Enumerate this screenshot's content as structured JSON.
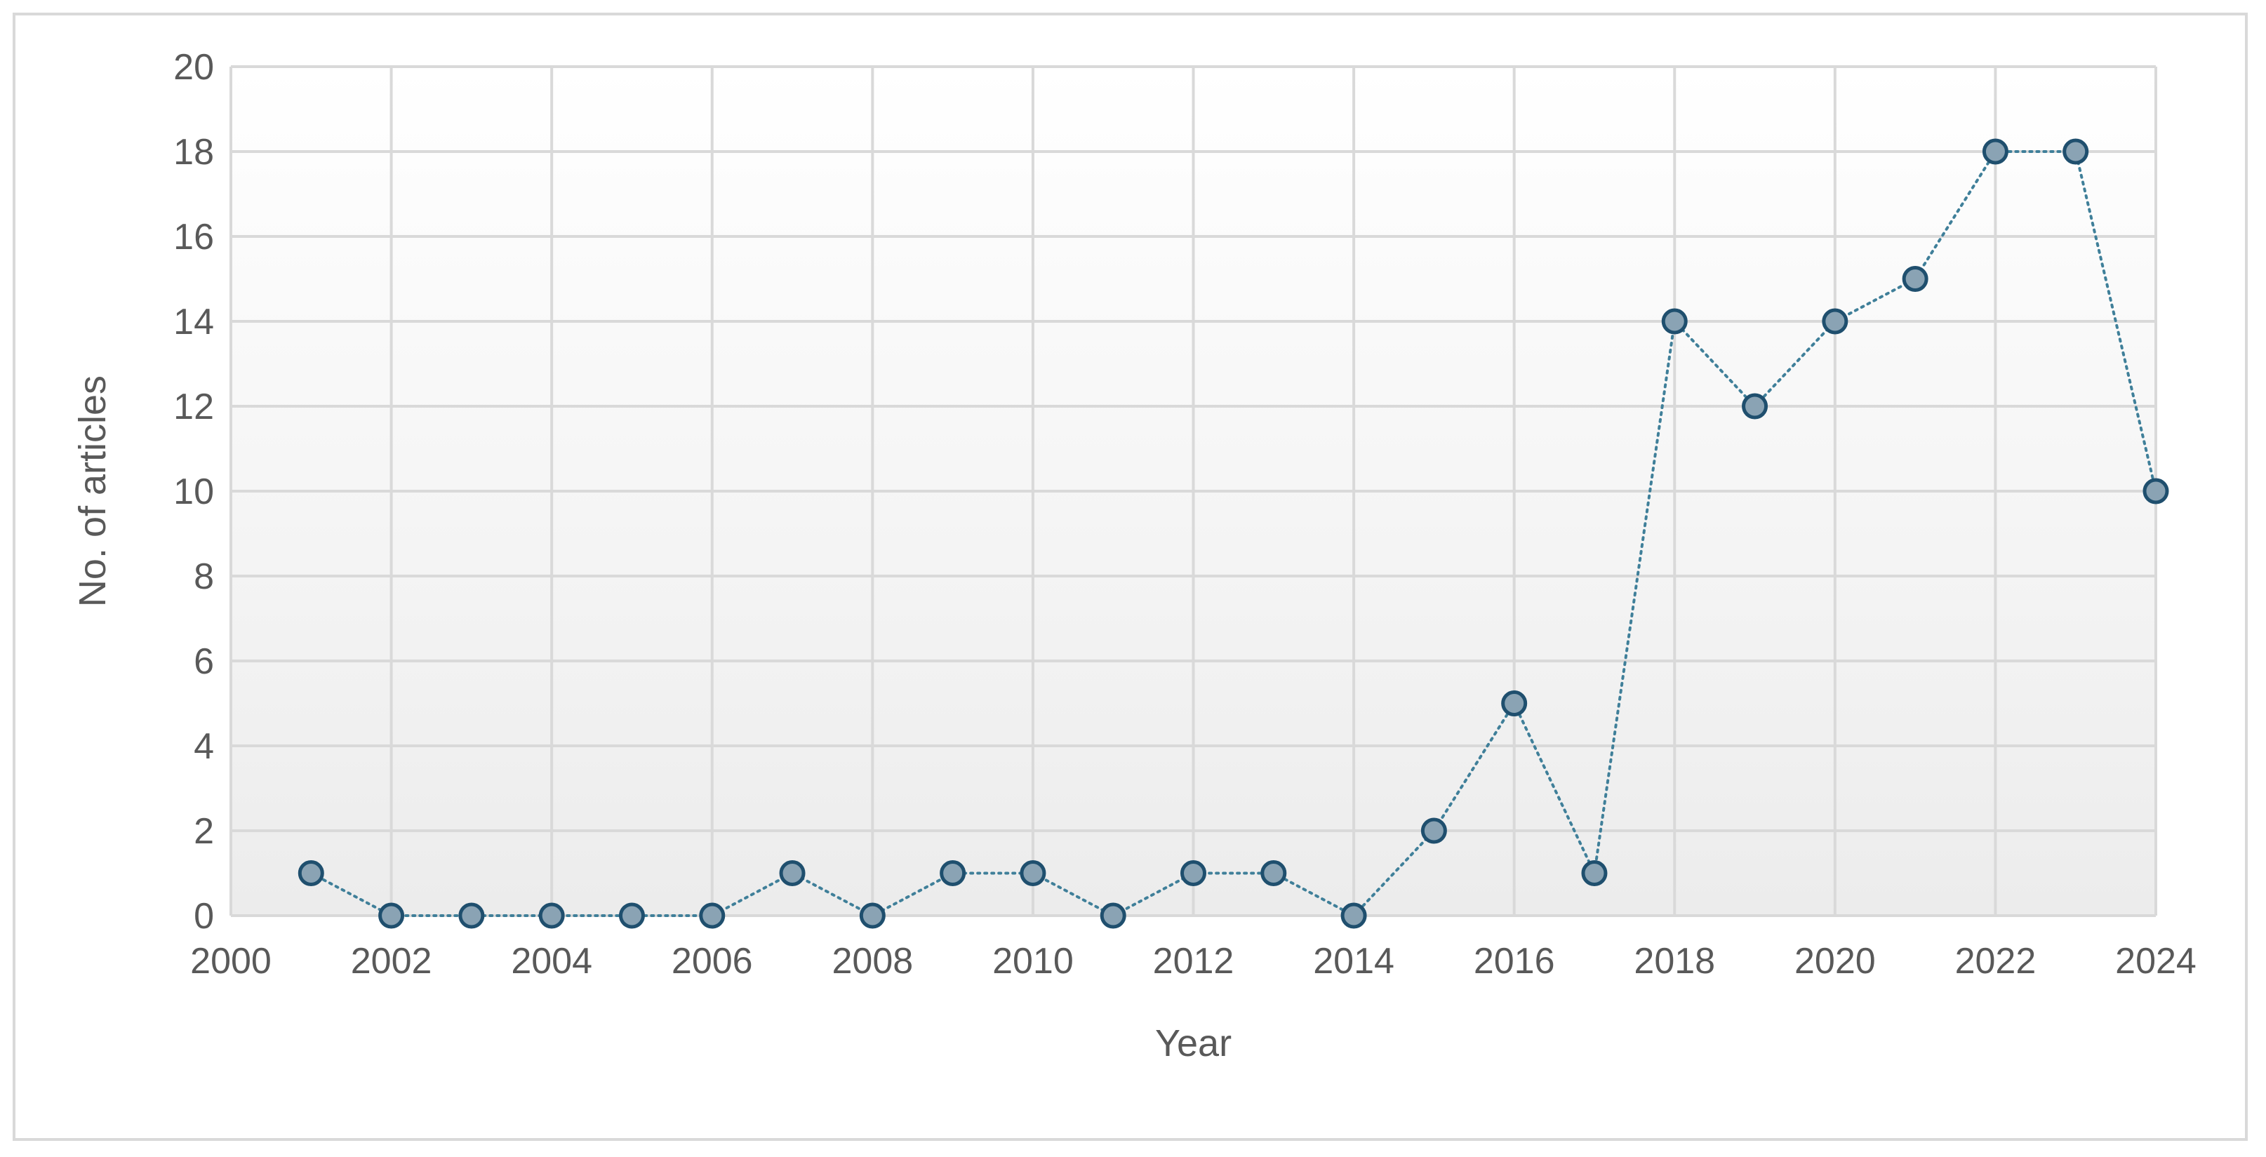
{
  "chart_data": {
    "type": "line",
    "title": "",
    "xlabel": "Year",
    "ylabel": "No. of articles",
    "xlim": [
      2000,
      2024
    ],
    "ylim": [
      0,
      20
    ],
    "x_ticks": [
      "2000",
      "2002",
      "2004",
      "2006",
      "2008",
      "2010",
      "2012",
      "2014",
      "2016",
      "2018",
      "2020",
      "2022",
      "2024"
    ],
    "y_ticks": [
      "0",
      "2",
      "4",
      "6",
      "8",
      "10",
      "12",
      "14",
      "16",
      "18",
      "20"
    ],
    "grid": true,
    "legend": "none",
    "line_style": "dotted",
    "colors": {
      "line": "#3f7f99",
      "marker_fill": "#8aa3b4",
      "marker_stroke": "#1f4f6e",
      "grid": "#d9d9d9",
      "plot_bg_top": "#ffffff",
      "plot_bg_bottom": "#ececec",
      "text": "#595959"
    },
    "series": [
      {
        "x": [
          2001,
          2002,
          2003,
          2004,
          2005,
          2006,
          2007,
          2008,
          2009,
          2010,
          2011,
          2012,
          2013,
          2014,
          2015,
          2016,
          2017,
          2018,
          2019,
          2020,
          2021,
          2022,
          2023,
          2024
        ],
        "values": [
          1,
          0,
          0,
          0,
          0,
          0,
          1,
          0,
          1,
          1,
          0,
          1,
          1,
          0,
          2,
          5,
          1,
          14,
          12,
          14,
          15,
          18,
          18,
          10
        ]
      }
    ]
  }
}
